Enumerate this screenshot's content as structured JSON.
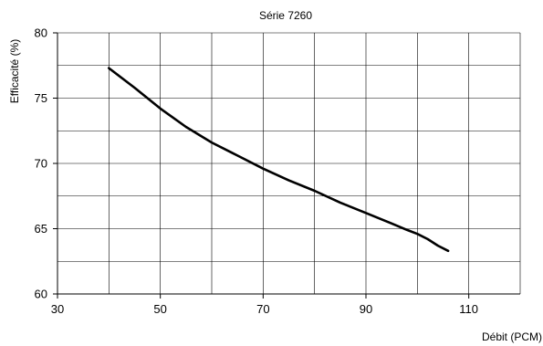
{
  "chart_data": {
    "type": "line",
    "title": "Série 7260",
    "xlabel": "Débit (PCM)",
    "ylabel": "Efficacité (%)",
    "xlim": [
      30,
      120
    ],
    "ylim": [
      60,
      80
    ],
    "xticks": [
      30,
      50,
      70,
      90,
      110
    ],
    "xtick_labels": [
      "30",
      "50",
      "70",
      "90",
      "110"
    ],
    "x_minor_grid": [
      40,
      60,
      80,
      100,
      120
    ],
    "yticks": [
      60,
      65,
      70,
      75,
      80
    ],
    "ytick_labels": [
      "60",
      "65",
      "70",
      "75",
      "80"
    ],
    "y_minor_grid": [
      62.5,
      67.5,
      72.5,
      77.5
    ],
    "grid": true,
    "legend": "none",
    "series": [
      {
        "color": "#000000",
        "x": [
          40,
          45,
          50,
          55,
          60,
          65,
          70,
          75,
          80,
          85,
          90,
          95,
          98,
          100,
          102,
          104,
          106
        ],
        "y": [
          77.3,
          75.8,
          74.2,
          72.8,
          71.6,
          70.6,
          69.6,
          68.7,
          67.9,
          67.0,
          66.2,
          65.4,
          64.9,
          64.6,
          64.2,
          63.7,
          63.3
        ]
      }
    ]
  }
}
